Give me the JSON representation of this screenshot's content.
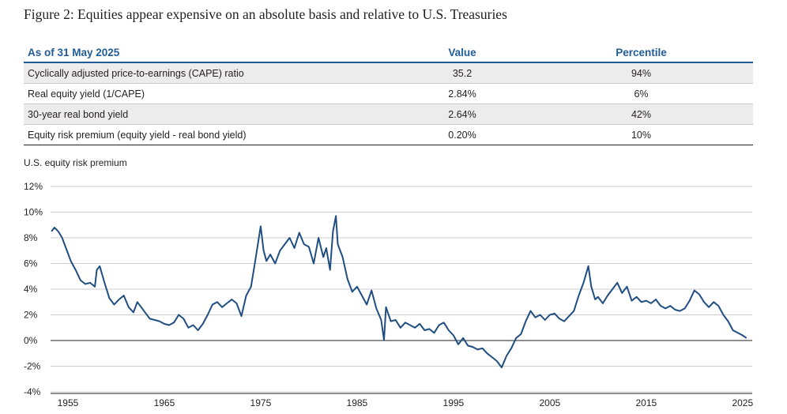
{
  "title": "Figure 2: Equities appear expensive on an absolute basis and relative to U.S. Treasuries",
  "table": {
    "headers": [
      "As of 31 May 2025",
      "Value",
      "Percentile"
    ],
    "rows": [
      [
        "Cyclically adjusted price-to-earnings (CAPE) ratio",
        "35.2",
        "94%"
      ],
      [
        "Real equity yield (1/CAPE)",
        "2.84%",
        "6%"
      ],
      [
        "30-year real bond yield",
        "2.64%",
        "42%"
      ],
      [
        "Equity risk premium (equity yield - real bond yield)",
        "0.20%",
        "10%"
      ]
    ]
  },
  "chart_data": {
    "type": "line",
    "title": "U.S. equity risk premium",
    "xlabel": "",
    "ylabel": "",
    "ylim": [
      -4,
      12
    ],
    "xlim": [
      1953.2,
      2026
    ],
    "y_ticks": [
      "12%",
      "10%",
      "8%",
      "6%",
      "4%",
      "2%",
      "0%",
      "-2%",
      "-4%"
    ],
    "x_ticks": [
      "1955",
      "1965",
      "1975",
      "1985",
      "1995",
      "2005",
      "2015",
      "2025"
    ],
    "grid": true,
    "line_color": "#1f4e82",
    "series": [
      {
        "x": [
          1953.3,
          1953.6,
          1954.0,
          1954.4,
          1954.8,
          1955.3,
          1955.8,
          1956.3,
          1956.8,
          1957.3,
          1957.8,
          1958.0,
          1958.3,
          1958.8,
          1959.3,
          1959.8,
          1960.3,
          1960.8,
          1961.3,
          1961.8,
          1962.2,
          1962.6,
          1963.0,
          1963.5,
          1964.0,
          1964.5,
          1965.0,
          1965.5,
          1966.0,
          1966.5,
          1967.0,
          1967.5,
          1968.0,
          1968.5,
          1969.0,
          1969.5,
          1970.0,
          1970.5,
          1971.0,
          1971.5,
          1972.0,
          1972.5,
          1973.0,
          1973.5,
          1974.0,
          1974.5,
          1975.0,
          1975.3,
          1975.6,
          1976.0,
          1976.5,
          1977.0,
          1977.5,
          1978.0,
          1978.5,
          1979.0,
          1979.5,
          1980.0,
          1980.5,
          1981.0,
          1981.5,
          1981.8,
          1982.2,
          1982.5,
          1982.8,
          1983.0,
          1983.5,
          1984.0,
          1984.5,
          1985.0,
          1985.5,
          1986.0,
          1986.5,
          1987.0,
          1987.5,
          1987.8,
          1988.0,
          1988.5,
          1989.0,
          1989.5,
          1990.0,
          1990.5,
          1991.0,
          1991.5,
          1992.0,
          1992.5,
          1993.0,
          1993.5,
          1994.0,
          1994.5,
          1995.0,
          1995.5,
          1996.0,
          1996.5,
          1997.0,
          1997.5,
          1998.0,
          1998.5,
          1999.0,
          1999.5,
          2000.0,
          2000.5,
          2001.0,
          2001.5,
          2002.0,
          2002.5,
          2003.0,
          2003.5,
          2004.0,
          2004.5,
          2005.0,
          2005.5,
          2006.0,
          2006.5,
          2007.0,
          2007.5,
          2008.0,
          2008.5,
          2009.0,
          2009.3,
          2009.7,
          2010.0,
          2010.5,
          2011.0,
          2011.5,
          2012.0,
          2012.5,
          2013.0,
          2013.5,
          2014.0,
          2014.5,
          2015.0,
          2015.5,
          2016.0,
          2016.5,
          2017.0,
          2017.5,
          2018.0,
          2018.5,
          2019.0,
          2019.5,
          2020.0,
          2020.5,
          2021.0,
          2021.5,
          2022.0,
          2022.5,
          2023.0,
          2023.5,
          2024.0,
          2024.5,
          2025.0,
          2025.4
        ],
        "values": [
          8.5,
          8.8,
          8.5,
          8.0,
          7.2,
          6.2,
          5.5,
          4.7,
          4.4,
          4.5,
          4.2,
          5.5,
          5.8,
          4.5,
          3.3,
          2.8,
          3.2,
          3.5,
          2.6,
          2.2,
          3.0,
          2.6,
          2.2,
          1.7,
          1.6,
          1.5,
          1.3,
          1.2,
          1.4,
          2.0,
          1.7,
          1.0,
          1.2,
          0.8,
          1.3,
          2.0,
          2.8,
          3.0,
          2.6,
          2.9,
          3.2,
          2.9,
          1.9,
          3.5,
          4.2,
          6.5,
          8.9,
          7.0,
          6.2,
          6.7,
          6.0,
          7.0,
          7.5,
          8.0,
          7.2,
          8.4,
          7.5,
          7.3,
          6.0,
          8.0,
          6.5,
          7.2,
          5.5,
          8.5,
          9.7,
          7.5,
          6.5,
          4.8,
          3.8,
          4.2,
          3.5,
          2.8,
          3.9,
          2.5,
          1.6,
          0.05,
          2.6,
          1.5,
          1.6,
          1.0,
          1.4,
          1.2,
          1.0,
          1.3,
          0.8,
          0.9,
          0.6,
          1.2,
          1.4,
          0.8,
          0.4,
          -0.3,
          0.2,
          -0.4,
          -0.5,
          -0.7,
          -0.6,
          -1.0,
          -1.3,
          -1.6,
          -2.1,
          -1.2,
          -0.6,
          0.2,
          0.5,
          1.5,
          2.3,
          1.8,
          2.0,
          1.6,
          2.0,
          2.1,
          1.7,
          1.5,
          1.9,
          2.3,
          3.5,
          4.5,
          5.8,
          4.2,
          3.2,
          3.4,
          2.9,
          3.5,
          4.0,
          4.5,
          3.7,
          4.2,
          3.1,
          3.4,
          3.0,
          3.1,
          2.9,
          3.2,
          2.7,
          2.5,
          2.7,
          2.4,
          2.3,
          2.5,
          3.1,
          3.9,
          3.6,
          3.0,
          2.6,
          3.0,
          2.7,
          2.0,
          1.5,
          0.8,
          0.6,
          0.4,
          0.2
        ]
      }
    ]
  }
}
